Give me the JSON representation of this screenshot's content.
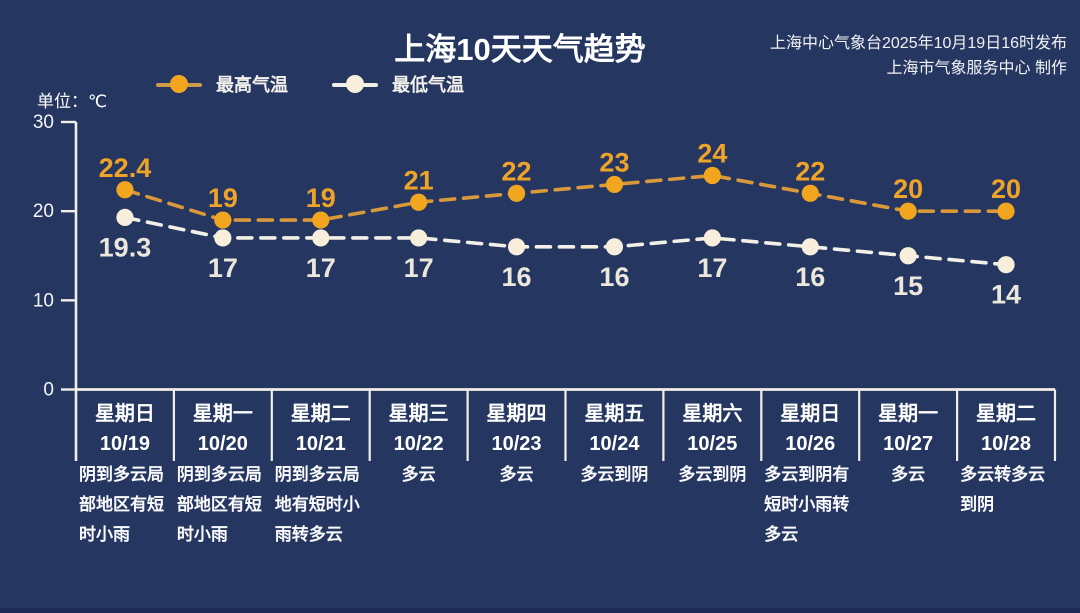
{
  "page": {
    "title": "上海10天天气趋势",
    "source_line1": "上海中心气象台2025年10月19日16时发布",
    "source_line2": "上海市气象服务中心 制作",
    "unit_label": "单位：℃"
  },
  "legend": {
    "high": {
      "label": "最高气温",
      "marker_color": "#f2a51f",
      "line_color": "#cf9a49"
    },
    "low": {
      "label": "最低气温",
      "marker_color": "#f7efdc",
      "line_color": "#f3f0e8"
    }
  },
  "colors": {
    "background": "#253661",
    "axis": "#f2efe8",
    "high_value_label": "#f0a329",
    "low_value_label": "#ebe7db"
  },
  "chart_data": {
    "type": "line",
    "title": "上海10天天气趋势",
    "ylabel": "单位：℃",
    "ylim": [
      0,
      30
    ],
    "yticks": [
      0,
      10,
      20,
      30
    ],
    "grid": false,
    "legend_position": "top-left",
    "categories": [
      {
        "day": "星期日",
        "date": "10/19",
        "weather": "阴到多云局部地区有短时小雨"
      },
      {
        "day": "星期一",
        "date": "10/20",
        "weather": "阴到多云局部地区有短时小雨"
      },
      {
        "day": "星期二",
        "date": "10/21",
        "weather": "阴到多云局地有短时小雨转多云"
      },
      {
        "day": "星期三",
        "date": "10/22",
        "weather": "多云"
      },
      {
        "day": "星期四",
        "date": "10/23",
        "weather": "多云"
      },
      {
        "day": "星期五",
        "date": "10/24",
        "weather": "多云到阴"
      },
      {
        "day": "星期六",
        "date": "10/25",
        "weather": "多云到阴"
      },
      {
        "day": "星期日",
        "date": "10/26",
        "weather": "多云到阴有短时小雨转多云"
      },
      {
        "day": "星期一",
        "date": "10/27",
        "weather": "多云"
      },
      {
        "day": "星期二",
        "date": "10/28",
        "weather": "多云转多云到阴"
      }
    ],
    "series": [
      {
        "name": "最高气温",
        "values": [
          22.4,
          19,
          19,
          21,
          22,
          23,
          24,
          22,
          20,
          20
        ],
        "marker_color": "#f2a51f",
        "line_color": "#d9993b",
        "label_color": "#f0a329"
      },
      {
        "name": "最低气温",
        "values": [
          19.3,
          17,
          17,
          17,
          16,
          16,
          17,
          16,
          15,
          14
        ],
        "marker_color": "#f7efdc",
        "line_color": "#f3f0e8",
        "label_color": "#ebe7db"
      }
    ]
  }
}
